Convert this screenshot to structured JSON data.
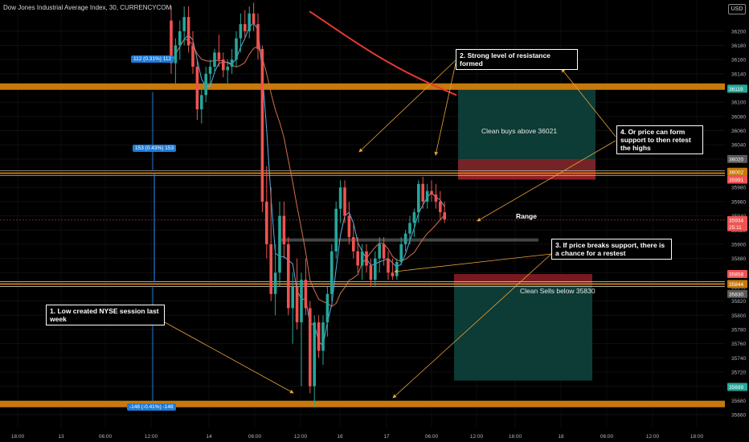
{
  "header": {
    "title": "Dow Jones Industrial Average Index, 30, CURRENCYCOM",
    "currency": "USD"
  },
  "colors": {
    "background": "#000000",
    "bull": "#26a69a",
    "bear": "#ef5350",
    "level": "#c7790a",
    "ema200": "#e53935",
    "ema50": "#d0714a",
    "ma20": "#5dade2",
    "long_zone": "#0d3b35",
    "stop_zone": "#8e1f24",
    "measure": "#1f7bd6",
    "arrow": "#e8a23b"
  },
  "annotations": {
    "note1": "1. Low created NYSE session last week",
    "note2": "2. Strong level of resistance formed",
    "note3": "3. If price breaks support, there is a chance for a restest",
    "note4": "4. Or price can form support to then retest the highs",
    "range": "Range",
    "buys": "Clean buys above 36021",
    "sells": "Clean Sells below 35830"
  },
  "measures": {
    "m1": "112 (0.31%) 112",
    "m2": "153 (0.43%) 153",
    "m3": "-148 (-0.41%) -148"
  },
  "chart_data": {
    "type": "candlestick",
    "title": "Dow Jones Industrial Average Index, 30, CURRENCYCOM",
    "ylim": [
      35640,
      36230
    ],
    "y_ticks": [
      35660,
      35680,
      35700,
      35720,
      35740,
      35760,
      35780,
      35800,
      35820,
      35840,
      35860,
      35880,
      35900,
      35920,
      35940,
      35960,
      35980,
      36000,
      36020,
      36040,
      36060,
      36080,
      36100,
      36120,
      36140,
      36160,
      36180,
      36200
    ],
    "x_ticks": [
      "18:00",
      "13",
      "06:00",
      "12:00",
      "14",
      "06:00",
      "12:00",
      "16",
      "17",
      "06:00",
      "12:00",
      "18:00",
      "18",
      "06:00",
      "12:00",
      "18:00"
    ],
    "horizontal_levels": [
      {
        "name": "resistance",
        "y": 36122
      },
      {
        "name": "support-high",
        "y": 36000
      },
      {
        "name": "support-low",
        "y": 35844
      },
      {
        "name": "low",
        "y": 35675
      }
    ],
    "price_labels": [
      {
        "label": "36119",
        "value": 36119,
        "color": "#26a69a"
      },
      {
        "label": "36020",
        "value": 36020,
        "color": "#5a5a5a"
      },
      {
        "label": "36002",
        "value": 36002,
        "color": "#c7790a"
      },
      {
        "label": "35991",
        "value": 35991,
        "color": "#ef5350"
      },
      {
        "label": "35934",
        "value": 35934,
        "color": "#ef5350"
      },
      {
        "label": "25:11",
        "value": 35924,
        "color": "#ef5350"
      },
      {
        "label": "35858",
        "value": 35858,
        "color": "#ef5350"
      },
      {
        "label": "35844",
        "value": 35844,
        "color": "#c7790a"
      },
      {
        "label": "35830",
        "value": 35830,
        "color": "#5a5a5a"
      },
      {
        "label": "35699",
        "value": 35699,
        "color": "#26a69a"
      }
    ],
    "candles_ohlc": [
      [
        36215,
        36235,
        36140,
        36155
      ],
      [
        36155,
        36190,
        36125,
        36180
      ],
      [
        36180,
        36215,
        36160,
        36200
      ],
      [
        36200,
        36235,
        36180,
        36220
      ],
      [
        36220,
        36235,
        36170,
        36180
      ],
      [
        36180,
        36200,
        36140,
        36150
      ],
      [
        36150,
        36160,
        36075,
        36090
      ],
      [
        36090,
        36125,
        36070,
        36110
      ],
      [
        36110,
        36150,
        36100,
        36140
      ],
      [
        36140,
        36160,
        36125,
        36150
      ],
      [
        36150,
        36175,
        36140,
        36170
      ],
      [
        36170,
        36195,
        36150,
        36160
      ],
      [
        36160,
        36170,
        36135,
        36145
      ],
      [
        36145,
        36160,
        36125,
        36150
      ],
      [
        36150,
        36175,
        36140,
        36160
      ],
      [
        36160,
        36200,
        36150,
        36190
      ],
      [
        36190,
        36225,
        36170,
        36210
      ],
      [
        36210,
        36230,
        36190,
        36200
      ],
      [
        36200,
        36235,
        36190,
        36225
      ],
      [
        36225,
        36240,
        36200,
        36210
      ],
      [
        36210,
        36225,
        36160,
        36175
      ],
      [
        36175,
        36180,
        35945,
        35960
      ],
      [
        35960,
        36010,
        35880,
        35900
      ],
      [
        35900,
        35980,
        35820,
        35830
      ],
      [
        35830,
        35900,
        35800,
        35860
      ],
      [
        35860,
        35960,
        35840,
        35940
      ],
      [
        35940,
        35960,
        35880,
        35900
      ],
      [
        35900,
        35910,
        35800,
        35810
      ],
      [
        35810,
        35860,
        35760,
        35840
      ],
      [
        35840,
        35880,
        35780,
        35790
      ],
      [
        35790,
        35860,
        35700,
        35850
      ],
      [
        35850,
        35880,
        35800,
        35810
      ],
      [
        35810,
        35820,
        35690,
        35700
      ],
      [
        35700,
        35800,
        35670,
        35790
      ],
      [
        35790,
        35800,
        35740,
        35750
      ],
      [
        35750,
        35800,
        35730,
        35790
      ],
      [
        35790,
        35840,
        35770,
        35830
      ],
      [
        35830,
        35900,
        35820,
        35890
      ],
      [
        35890,
        35960,
        35880,
        35950
      ],
      [
        35950,
        35990,
        35930,
        35980
      ],
      [
        35980,
        35990,
        35930,
        35940
      ],
      [
        35940,
        35960,
        35900,
        35910
      ],
      [
        35910,
        35930,
        35880,
        35890
      ],
      [
        35890,
        35910,
        35860,
        35870
      ],
      [
        35870,
        35900,
        35850,
        35890
      ],
      [
        35890,
        35900,
        35860,
        35870
      ],
      [
        35870,
        35880,
        35840,
        35850
      ],
      [
        35850,
        35890,
        35840,
        35880
      ],
      [
        35880,
        35910,
        35860,
        35900
      ],
      [
        35900,
        35910,
        35870,
        35880
      ],
      [
        35880,
        35890,
        35850,
        35860
      ],
      [
        35860,
        35880,
        35850,
        35855
      ],
      [
        35855,
        35880,
        35850,
        35875
      ],
      [
        35875,
        35910,
        35870,
        35900
      ],
      [
        35900,
        35920,
        35890,
        35915
      ],
      [
        35915,
        35940,
        35900,
        35930
      ],
      [
        35930,
        35950,
        35910,
        35945
      ],
      [
        35945,
        35990,
        35930,
        35985
      ],
      [
        35985,
        35995,
        35950,
        35960
      ],
      [
        35960,
        35985,
        35950,
        35975
      ],
      [
        35975,
        35990,
        35960,
        35970
      ],
      [
        35970,
        35985,
        35950,
        35960
      ],
      [
        35960,
        35975,
        35935,
        35945
      ],
      [
        35945,
        35960,
        35930,
        35935
      ]
    ],
    "long_position": {
      "entry": 36002,
      "take_profit": 36122,
      "stop": 35991
    },
    "short_position": {
      "entry": 35844,
      "take_profit": 35708,
      "stop": 35858
    }
  }
}
